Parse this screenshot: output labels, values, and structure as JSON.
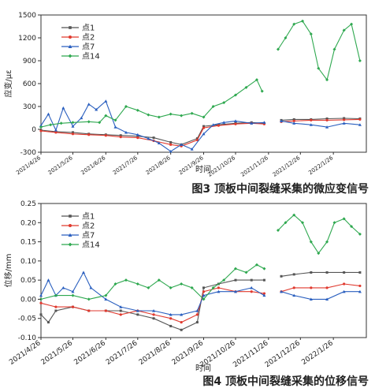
{
  "chart_data": [
    {
      "type": "line",
      "caption": "图3  顶板中间裂缝采集的微应变信号",
      "xlabel": "时间",
      "ylabel": "应变/με",
      "ylim": [
        -300,
        1500
      ],
      "yticks": [
        -300,
        0,
        300,
        600,
        900,
        1200,
        1500
      ],
      "xlim": [
        "2021-04-26",
        "2022-02-26"
      ],
      "xticks": [
        "2021/4/26",
        "2021/5/26",
        "2021/6/26",
        "2021/7/26",
        "2021/8/26",
        "2021/9/26",
        "2021/10/26",
        "2021/11/26",
        "2021/12/26",
        "2022/1/26"
      ],
      "legend_position": "top-left",
      "series": [
        {
          "name": "点1",
          "color": "#555555",
          "marker": "square",
          "points": [
            [
              "2021-04-26",
              -10
            ],
            [
              "2021-05-10",
              -30
            ],
            [
              "2021-05-26",
              -40
            ],
            [
              "2021-06-10",
              -60
            ],
            [
              "2021-06-26",
              -70
            ],
            [
              "2021-07-10",
              -80
            ],
            [
              "2021-07-26",
              -90
            ],
            [
              "2021-08-10",
              -110
            ],
            [
              "2021-08-26",
              -170
            ],
            [
              "2021-09-05",
              -200
            ],
            [
              "2021-09-20",
              -120
            ],
            [
              "2021-09-26",
              40
            ],
            [
              "2021-10-10",
              60
            ],
            [
              "2021-10-26",
              80
            ],
            [
              "2021-11-10",
              90
            ],
            [
              "2021-11-22",
              80
            ],
            null,
            [
              "2021-12-08",
              120
            ],
            [
              "2021-12-20",
              130
            ],
            [
              "2022-01-05",
              130
            ],
            [
              "2022-01-20",
              140
            ],
            [
              "2022-02-05",
              145
            ],
            [
              "2022-02-20",
              140
            ]
          ]
        },
        {
          "name": "点2",
          "color": "#e03a2f",
          "marker": "circle",
          "points": [
            [
              "2021-04-26",
              -20
            ],
            [
              "2021-05-10",
              -40
            ],
            [
              "2021-05-26",
              -60
            ],
            [
              "2021-06-10",
              -70
            ],
            [
              "2021-06-26",
              -80
            ],
            [
              "2021-07-10",
              -100
            ],
            [
              "2021-07-26",
              -110
            ],
            [
              "2021-08-10",
              -150
            ],
            [
              "2021-08-26",
              -200
            ],
            [
              "2021-09-05",
              -220
            ],
            [
              "2021-09-20",
              -140
            ],
            [
              "2021-09-26",
              20
            ],
            [
              "2021-10-10",
              50
            ],
            [
              "2021-10-26",
              70
            ],
            [
              "2021-11-10",
              80
            ],
            [
              "2021-11-22",
              70
            ],
            null,
            [
              "2021-12-08",
              100
            ],
            [
              "2021-12-20",
              110
            ],
            [
              "2022-01-05",
              120
            ],
            [
              "2022-01-20",
              120
            ],
            [
              "2022-02-05",
              125
            ],
            [
              "2022-02-20",
              130
            ]
          ]
        },
        {
          "name": "点7",
          "color": "#2a5fbf",
          "marker": "triangle",
          "points": [
            [
              "2021-04-26",
              50
            ],
            [
              "2021-05-03",
              200
            ],
            [
              "2021-05-10",
              -10
            ],
            [
              "2021-05-17",
              280
            ],
            [
              "2021-05-26",
              40
            ],
            [
              "2021-06-03",
              150
            ],
            [
              "2021-06-10",
              330
            ],
            [
              "2021-06-17",
              260
            ],
            [
              "2021-06-26",
              370
            ],
            [
              "2021-07-05",
              30
            ],
            [
              "2021-07-15",
              -40
            ],
            [
              "2021-07-26",
              -70
            ],
            [
              "2021-08-05",
              -120
            ],
            [
              "2021-08-15",
              -180
            ],
            [
              "2021-08-26",
              -290
            ],
            [
              "2021-09-05",
              -200
            ],
            [
              "2021-09-15",
              -260
            ],
            [
              "2021-09-26",
              -60
            ],
            [
              "2021-10-05",
              60
            ],
            [
              "2021-10-15",
              90
            ],
            [
              "2021-10-26",
              110
            ],
            [
              "2021-11-10",
              80
            ],
            [
              "2021-11-22",
              90
            ],
            null,
            [
              "2021-12-08",
              110
            ],
            [
              "2021-12-20",
              80
            ],
            [
              "2022-01-05",
              60
            ],
            [
              "2022-01-20",
              30
            ],
            [
              "2022-02-05",
              80
            ],
            [
              "2022-02-20",
              60
            ]
          ]
        },
        {
          "name": "点14",
          "color": "#2ea84f",
          "marker": "diamond",
          "points": [
            [
              "2021-04-26",
              30
            ],
            [
              "2021-05-05",
              60
            ],
            [
              "2021-05-15",
              80
            ],
            [
              "2021-05-26",
              90
            ],
            [
              "2021-06-10",
              100
            ],
            [
              "2021-06-20",
              90
            ],
            [
              "2021-06-26",
              180
            ],
            [
              "2021-07-05",
              120
            ],
            [
              "2021-07-15",
              300
            ],
            [
              "2021-07-26",
              250
            ],
            [
              "2021-08-05",
              190
            ],
            [
              "2021-08-15",
              160
            ],
            [
              "2021-08-26",
              200
            ],
            [
              "2021-09-05",
              180
            ],
            [
              "2021-09-15",
              210
            ],
            [
              "2021-09-26",
              160
            ],
            [
              "2021-10-05",
              300
            ],
            [
              "2021-10-15",
              350
            ],
            [
              "2021-10-26",
              450
            ],
            [
              "2021-11-05",
              550
            ],
            [
              "2021-11-15",
              650
            ],
            [
              "2021-11-20",
              500
            ],
            null,
            [
              "2021-12-05",
              1050
            ],
            [
              "2021-12-12",
              1200
            ],
            [
              "2021-12-20",
              1380
            ],
            [
              "2021-12-28",
              1420
            ],
            [
              "2022-01-05",
              1250
            ],
            [
              "2022-01-12",
              800
            ],
            [
              "2022-01-20",
              650
            ],
            [
              "2022-01-27",
              1050
            ],
            [
              "2022-02-05",
              1300
            ],
            [
              "2022-02-12",
              1380
            ],
            [
              "2022-02-20",
              900
            ]
          ]
        }
      ]
    },
    {
      "type": "line",
      "caption": "图4  顶板中间裂缝采集的位移信号",
      "xlabel": "时间",
      "ylabel": "位移/mm",
      "ylim": [
        -0.1,
        0.25
      ],
      "yticks": [
        -0.1,
        -0.05,
        0.0,
        0.05,
        0.1,
        0.15,
        0.2,
        0.25
      ],
      "xlim": [
        "2021-04-26",
        "2022-02-26"
      ],
      "xticks": [
        "2021/4/26",
        "2021/5/26",
        "2021/6/26",
        "2021/7/26",
        "2021/8/26",
        "2021/9/26",
        "2021/10/26",
        "2021/11/26",
        "2021/12/26",
        "2022/1/26"
      ],
      "legend_position": "top-left",
      "series": [
        {
          "name": "点1",
          "color": "#555555",
          "marker": "square",
          "points": [
            [
              "2021-04-26",
              -0.04
            ],
            [
              "2021-05-03",
              -0.06
            ],
            [
              "2021-05-10",
              -0.03
            ],
            [
              "2021-05-26",
              -0.02
            ],
            [
              "2021-06-10",
              -0.03
            ],
            [
              "2021-06-26",
              -0.03
            ],
            [
              "2021-07-10",
              -0.03
            ],
            [
              "2021-07-26",
              -0.04
            ],
            [
              "2021-08-10",
              -0.05
            ],
            [
              "2021-08-26",
              -0.07
            ],
            [
              "2021-09-05",
              -0.08
            ],
            [
              "2021-09-20",
              -0.06
            ],
            [
              "2021-09-26",
              0.03
            ],
            [
              "2021-10-10",
              0.04
            ],
            [
              "2021-10-26",
              0.05
            ],
            [
              "2021-11-10",
              0.05
            ],
            [
              "2021-11-22",
              0.05
            ],
            null,
            [
              "2021-12-08",
              0.06
            ],
            [
              "2021-12-20",
              0.065
            ],
            [
              "2022-01-05",
              0.07
            ],
            [
              "2022-01-20",
              0.07
            ],
            [
              "2022-02-05",
              0.07
            ],
            [
              "2022-02-20",
              0.07
            ]
          ]
        },
        {
          "name": "点2",
          "color": "#e03a2f",
          "marker": "circle",
          "points": [
            [
              "2021-04-26",
              -0.01
            ],
            [
              "2021-05-10",
              -0.02
            ],
            [
              "2021-05-26",
              -0.02
            ],
            [
              "2021-06-10",
              -0.03
            ],
            [
              "2021-06-26",
              -0.03
            ],
            [
              "2021-07-10",
              -0.04
            ],
            [
              "2021-07-26",
              -0.03
            ],
            [
              "2021-08-10",
              -0.04
            ],
            [
              "2021-08-26",
              -0.05
            ],
            [
              "2021-09-05",
              -0.06
            ],
            [
              "2021-09-20",
              -0.04
            ],
            [
              "2021-09-26",
              0.02
            ],
            [
              "2021-10-10",
              0.03
            ],
            [
              "2021-10-26",
              0.02
            ],
            [
              "2021-11-10",
              0.02
            ],
            [
              "2021-11-22",
              0.015
            ],
            null,
            [
              "2021-12-08",
              0.02
            ],
            [
              "2021-12-20",
              0.03
            ],
            [
              "2022-01-05",
              0.03
            ],
            [
              "2022-01-20",
              0.03
            ],
            [
              "2022-02-05",
              0.04
            ],
            [
              "2022-02-20",
              0.035
            ]
          ]
        },
        {
          "name": "点7",
          "color": "#2a5fbf",
          "marker": "triangle",
          "points": [
            [
              "2021-04-26",
              0.01
            ],
            [
              "2021-05-03",
              0.05
            ],
            [
              "2021-05-10",
              0.01
            ],
            [
              "2021-05-17",
              0.03
            ],
            [
              "2021-05-26",
              0.02
            ],
            [
              "2021-06-05",
              0.07
            ],
            [
              "2021-06-12",
              0.03
            ],
            [
              "2021-06-26",
              0.0
            ],
            [
              "2021-07-10",
              -0.02
            ],
            [
              "2021-07-26",
              -0.03
            ],
            [
              "2021-08-10",
              -0.03
            ],
            [
              "2021-08-26",
              -0.04
            ],
            [
              "2021-09-05",
              -0.04
            ],
            [
              "2021-09-20",
              -0.03
            ],
            [
              "2021-09-26",
              0.01
            ],
            [
              "2021-10-10",
              0.02
            ],
            [
              "2021-10-26",
              0.02
            ],
            [
              "2021-11-10",
              0.03
            ],
            [
              "2021-11-22",
              0.01
            ],
            null,
            [
              "2021-12-08",
              0.02
            ],
            [
              "2021-12-20",
              0.01
            ],
            [
              "2022-01-05",
              0.0
            ],
            [
              "2022-01-20",
              0.0
            ],
            [
              "2022-02-05",
              0.02
            ],
            [
              "2022-02-20",
              0.02
            ]
          ]
        },
        {
          "name": "点14",
          "color": "#2ea84f",
          "marker": "diamond",
          "points": [
            [
              "2021-04-26",
              0.0
            ],
            [
              "2021-05-10",
              0.01
            ],
            [
              "2021-05-26",
              0.01
            ],
            [
              "2021-06-10",
              0.0
            ],
            [
              "2021-06-26",
              0.01
            ],
            [
              "2021-07-05",
              0.04
            ],
            [
              "2021-07-15",
              0.05
            ],
            [
              "2021-07-26",
              0.04
            ],
            [
              "2021-08-05",
              0.03
            ],
            [
              "2021-08-15",
              0.05
            ],
            [
              "2021-08-26",
              0.03
            ],
            [
              "2021-09-05",
              0.04
            ],
            [
              "2021-09-15",
              0.03
            ],
            [
              "2021-09-26",
              0.0
            ],
            [
              "2021-10-05",
              0.03
            ],
            [
              "2021-10-15",
              0.05
            ],
            [
              "2021-10-26",
              0.08
            ],
            [
              "2021-11-05",
              0.07
            ],
            [
              "2021-11-15",
              0.09
            ],
            [
              "2021-11-22",
              0.08
            ],
            null,
            [
              "2021-12-05",
              0.18
            ],
            [
              "2021-12-12",
              0.2
            ],
            [
              "2021-12-20",
              0.22
            ],
            [
              "2021-12-28",
              0.2
            ],
            [
              "2022-01-05",
              0.15
            ],
            [
              "2022-01-12",
              0.12
            ],
            [
              "2022-01-20",
              0.15
            ],
            [
              "2022-01-27",
              0.2
            ],
            [
              "2022-02-05",
              0.21
            ],
            [
              "2022-02-12",
              0.19
            ],
            [
              "2022-02-20",
              0.17
            ]
          ]
        }
      ]
    }
  ]
}
